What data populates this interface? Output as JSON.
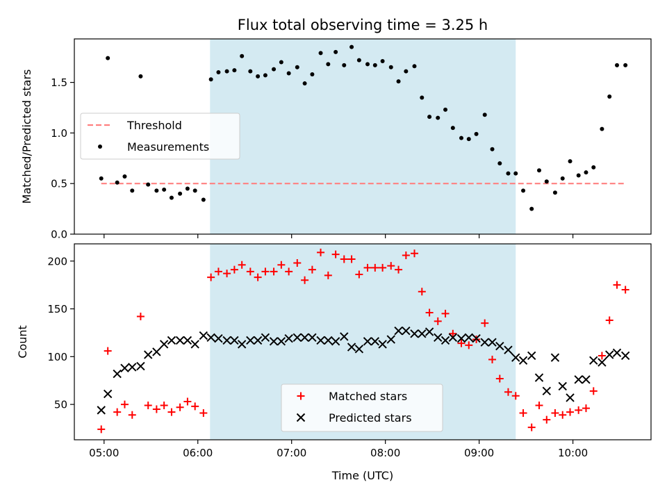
{
  "chart_data": {
    "title": "Flux total observing time = 3.25 h",
    "xlabel": "Time (UTC)",
    "x_unit": "hours (UTC)",
    "x_ticks": [
      5,
      6,
      7,
      8,
      9,
      10
    ],
    "x_tick_labels": [
      "05:00",
      "06:00",
      "07:00",
      "08:00",
      "09:00",
      "10:00"
    ],
    "xlim": [
      4.683,
      10.833
    ],
    "highlight_span": {
      "x": [
        6.13,
        9.39
      ],
      "color": "#add8e6"
    },
    "panels": [
      {
        "type": "scatter",
        "ylabel": "Matched/Predicted stars",
        "ylim": [
          0,
          1.93
        ],
        "y_ticks": [
          0.0,
          0.5,
          1.0,
          1.5
        ],
        "y_tick_labels": [
          "0.0",
          "0.5",
          "1.0",
          "1.5"
        ],
        "legend": "upper-left",
        "series": [
          {
            "name": "Threshold",
            "kind": "dashed-line",
            "color": "#ff8080",
            "x": [
              4.97,
              10.57
            ],
            "y": [
              0.5,
              0.5
            ]
          },
          {
            "name": "Measurements",
            "kind": "points",
            "color": "#000000",
            "x": [
              4.97,
              5.04,
              5.14,
              5.22,
              5.3,
              5.39,
              5.47,
              5.56,
              5.64,
              5.72,
              5.81,
              5.89,
              5.97,
              6.06,
              6.14,
              6.22,
              6.31,
              6.39,
              6.47,
              6.56,
              6.64,
              6.72,
              6.81,
              6.89,
              6.97,
              7.06,
              7.14,
              7.22,
              7.31,
              7.39,
              7.47,
              7.56,
              7.64,
              7.72,
              7.81,
              7.89,
              7.97,
              8.06,
              8.14,
              8.22,
              8.31,
              8.39,
              8.47,
              8.56,
              8.64,
              8.72,
              8.81,
              8.89,
              8.97,
              9.06,
              9.14,
              9.22,
              9.31,
              9.39,
              9.47,
              9.56,
              9.64,
              9.72,
              9.81,
              9.89,
              9.97,
              10.06,
              10.14,
              10.22,
              10.31,
              10.39,
              10.47,
              10.56
            ],
            "y": [
              0.55,
              1.74,
              0.51,
              0.57,
              0.43,
              1.56,
              0.49,
              0.43,
              0.44,
              0.36,
              0.4,
              0.45,
              0.43,
              0.34,
              1.53,
              1.6,
              1.61,
              1.62,
              1.76,
              1.61,
              1.56,
              1.57,
              1.63,
              1.7,
              1.59,
              1.65,
              1.49,
              1.58,
              1.79,
              1.68,
              1.8,
              1.67,
              1.85,
              1.72,
              1.68,
              1.67,
              1.71,
              1.65,
              1.51,
              1.61,
              1.66,
              1.35,
              1.16,
              1.15,
              1.23,
              1.05,
              0.95,
              0.94,
              0.99,
              1.18,
              0.84,
              0.7,
              0.6,
              0.6,
              0.43,
              0.25,
              0.63,
              0.52,
              0.41,
              0.55,
              0.72,
              0.58,
              0.61,
              0.66,
              1.04,
              1.36,
              1.67,
              1.67
            ]
          }
        ]
      },
      {
        "type": "scatter",
        "ylabel": "Count",
        "ylim": [
          13,
          218
        ],
        "y_ticks": [
          50,
          100,
          150,
          200
        ],
        "y_tick_labels": [
          "50",
          "100",
          "150",
          "200"
        ],
        "legend": "lower-center",
        "series": [
          {
            "name": "Matched stars",
            "marker": "plus",
            "color": "#ff0000",
            "x": [
              4.97,
              5.04,
              5.14,
              5.22,
              5.3,
              5.39,
              5.47,
              5.56,
              5.64,
              5.72,
              5.81,
              5.89,
              5.97,
              6.06,
              6.14,
              6.22,
              6.31,
              6.39,
              6.47,
              6.56,
              6.64,
              6.72,
              6.81,
              6.89,
              6.97,
              7.06,
              7.14,
              7.22,
              7.31,
              7.39,
              7.47,
              7.56,
              7.64,
              7.72,
              7.81,
              7.89,
              7.97,
              8.06,
              8.14,
              8.22,
              8.31,
              8.39,
              8.47,
              8.56,
              8.64,
              8.72,
              8.81,
              8.89,
              8.97,
              9.06,
              9.14,
              9.22,
              9.31,
              9.39,
              9.47,
              9.56,
              9.64,
              9.72,
              9.81,
              9.89,
              9.97,
              10.06,
              10.14,
              10.22,
              10.31,
              10.39,
              10.47,
              10.56
            ],
            "y": [
              24,
              106,
              42,
              50,
              39,
              142,
              49,
              45,
              49,
              42,
              47,
              53,
              48,
              41,
              183,
              189,
              187,
              191,
              196,
              189,
              183,
              189,
              189,
              196,
              189,
              198,
              180,
              191,
              209,
              185,
              207,
              202,
              202,
              186,
              193,
              193,
              193,
              195,
              191,
              206,
              208,
              168,
              146,
              137,
              145,
              124,
              114,
              112,
              118,
              135,
              97,
              77,
              63,
              59,
              41,
              26,
              49,
              34,
              41,
              39,
              42,
              44,
              46,
              64,
              101,
              138,
              175,
              170
            ]
          },
          {
            "name": "Predicted stars",
            "marker": "x",
            "color": "#000000",
            "x": [
              4.97,
              5.04,
              5.14,
              5.22,
              5.3,
              5.39,
              5.47,
              5.56,
              5.64,
              5.72,
              5.81,
              5.89,
              5.97,
              6.06,
              6.14,
              6.22,
              6.31,
              6.39,
              6.47,
              6.56,
              6.64,
              6.72,
              6.81,
              6.89,
              6.97,
              7.06,
              7.14,
              7.22,
              7.31,
              7.39,
              7.47,
              7.56,
              7.64,
              7.72,
              7.81,
              7.89,
              7.97,
              8.06,
              8.14,
              8.22,
              8.31,
              8.39,
              8.47,
              8.56,
              8.64,
              8.72,
              8.81,
              8.89,
              8.97,
              9.06,
              9.14,
              9.22,
              9.31,
              9.39,
              9.47,
              9.56,
              9.64,
              9.72,
              9.81,
              9.89,
              9.97,
              10.06,
              10.14,
              10.22,
              10.31,
              10.39,
              10.47,
              10.56
            ],
            "y": [
              44,
              61,
              82,
              88,
              89,
              90,
              102,
              105,
              113,
              117,
              117,
              117,
              113,
              122,
              120,
              119,
              117,
              117,
              113,
              117,
              117,
              120,
              116,
              116,
              119,
              120,
              120,
              120,
              117,
              117,
              116,
              121,
              110,
              108,
              116,
              116,
              113,
              118,
              127,
              127,
              124,
              124,
              126,
              120,
              117,
              120,
              119,
              120,
              119,
              115,
              115,
              111,
              107,
              99,
              96,
              101,
              78,
              64,
              99,
              69,
              57,
              76,
              76,
              96,
              94,
              102,
              104,
              101
            ]
          }
        ]
      }
    ]
  }
}
